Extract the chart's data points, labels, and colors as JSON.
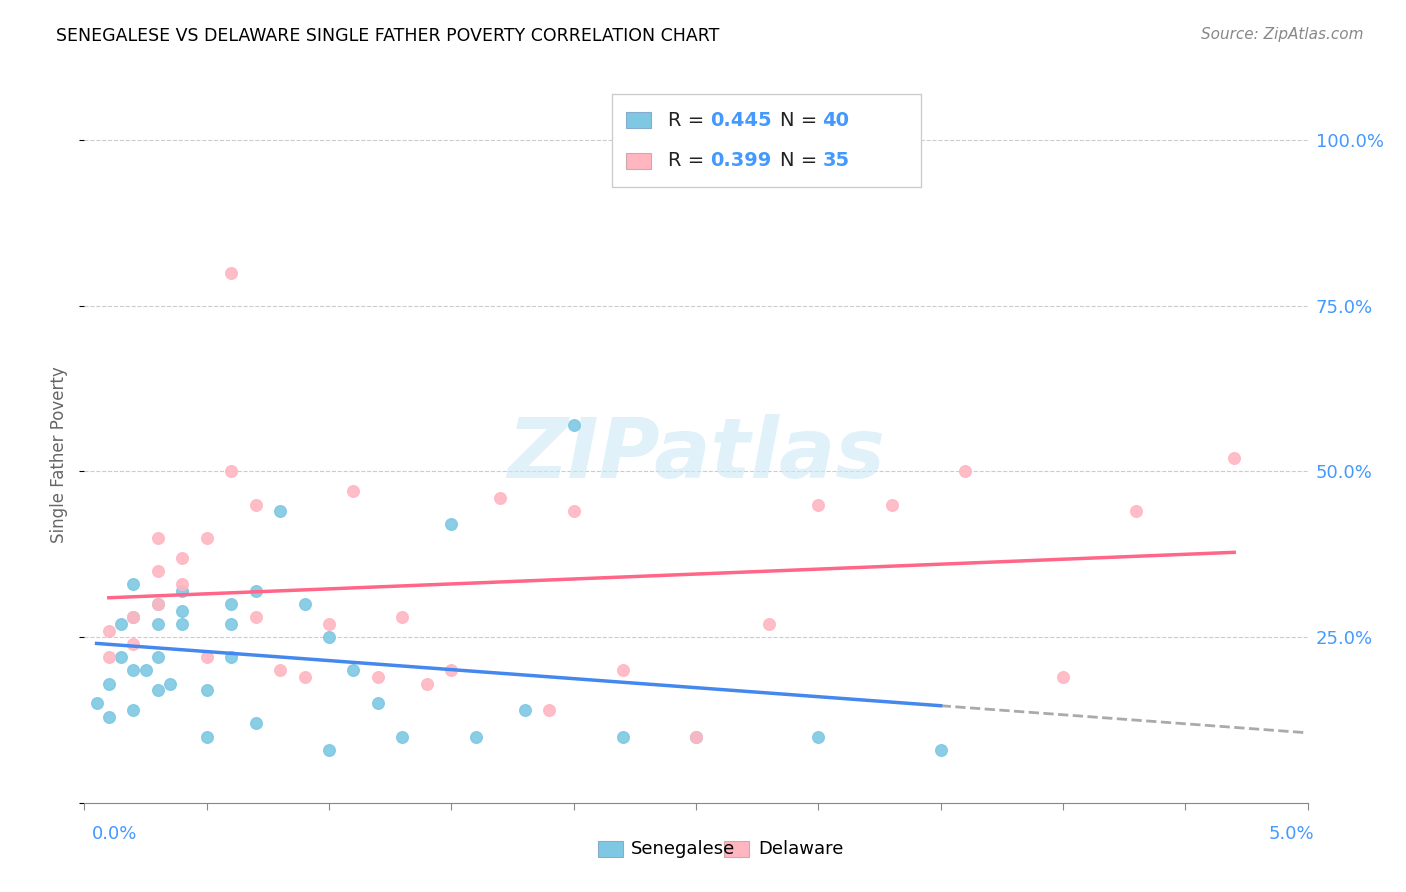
{
  "title": "SENEGALESE VS DELAWARE SINGLE FATHER POVERTY CORRELATION CHART",
  "source": "Source: ZipAtlas.com",
  "ylabel": "Single Father Poverty",
  "xlim": [
    0.0,
    0.05
  ],
  "ylim": [
    0.0,
    1.05
  ],
  "yticks": [
    0.0,
    0.25,
    0.5,
    0.75,
    1.0
  ],
  "ytick_labels": [
    "",
    "25.0%",
    "50.0%",
    "75.0%",
    "100.0%"
  ],
  "legend_r1": "0.445",
  "legend_n1": "40",
  "legend_r2": "0.399",
  "legend_n2": "35",
  "color_senegalese": "#7ec8e3",
  "color_delaware": "#ffb6c1",
  "color_blue_text": "#4499ff",
  "color_line_blue": "#4488ee",
  "color_line_pink": "#ff6688",
  "color_line_dash": "#aaaaaa",
  "watermark": "ZIPatlas",
  "senegalese_x": [
    0.0005,
    0.001,
    0.001,
    0.0015,
    0.0015,
    0.002,
    0.002,
    0.002,
    0.002,
    0.0025,
    0.003,
    0.003,
    0.003,
    0.003,
    0.0035,
    0.004,
    0.004,
    0.004,
    0.005,
    0.005,
    0.006,
    0.006,
    0.006,
    0.007,
    0.007,
    0.008,
    0.009,
    0.01,
    0.01,
    0.011,
    0.012,
    0.013,
    0.015,
    0.016,
    0.018,
    0.02,
    0.022,
    0.025,
    0.03,
    0.035
  ],
  "senegalese_y": [
    0.15,
    0.13,
    0.18,
    0.22,
    0.27,
    0.14,
    0.2,
    0.28,
    0.33,
    0.2,
    0.17,
    0.22,
    0.27,
    0.3,
    0.18,
    0.29,
    0.27,
    0.32,
    0.1,
    0.17,
    0.22,
    0.27,
    0.3,
    0.12,
    0.32,
    0.44,
    0.3,
    0.08,
    0.25,
    0.2,
    0.15,
    0.1,
    0.42,
    0.1,
    0.14,
    0.57,
    0.1,
    0.1,
    0.1,
    0.08
  ],
  "delaware_x": [
    0.001,
    0.001,
    0.002,
    0.002,
    0.003,
    0.003,
    0.003,
    0.004,
    0.004,
    0.005,
    0.005,
    0.006,
    0.006,
    0.007,
    0.007,
    0.008,
    0.009,
    0.01,
    0.011,
    0.012,
    0.013,
    0.014,
    0.015,
    0.017,
    0.019,
    0.02,
    0.022,
    0.025,
    0.028,
    0.03,
    0.033,
    0.036,
    0.04,
    0.043,
    0.047
  ],
  "delaware_y": [
    0.22,
    0.26,
    0.24,
    0.28,
    0.3,
    0.35,
    0.4,
    0.33,
    0.37,
    0.22,
    0.4,
    0.5,
    0.8,
    0.28,
    0.45,
    0.2,
    0.19,
    0.27,
    0.47,
    0.19,
    0.28,
    0.18,
    0.2,
    0.46,
    0.14,
    0.44,
    0.2,
    0.1,
    0.27,
    0.45,
    0.45,
    0.5,
    0.19,
    0.44,
    0.52
  ]
}
